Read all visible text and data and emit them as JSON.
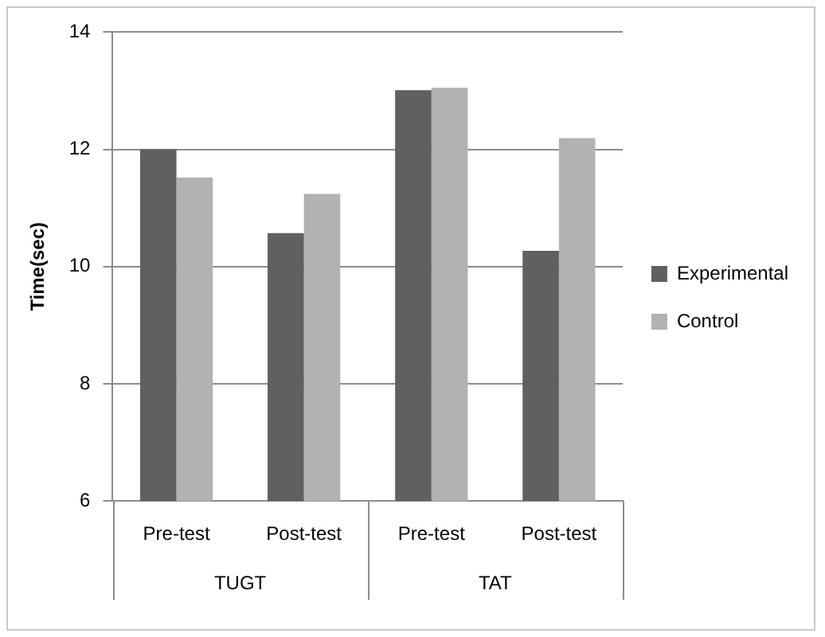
{
  "chart_data": {
    "type": "bar",
    "ylabel": "Time(sec)",
    "categories": [
      "Pre-test",
      "Post-test",
      "Pre-test",
      "Post-test"
    ],
    "annotations": [
      "TUGT",
      "TAT"
    ],
    "series": [
      {
        "name": "Experimental",
        "color": "#606060",
        "values": [
          12.0,
          10.57,
          13.01,
          10.27
        ]
      },
      {
        "name": "Control",
        "color": "#b2b2b2",
        "values": [
          11.52,
          11.24,
          13.05,
          12.19
        ]
      }
    ],
    "ylim": [
      6,
      14
    ],
    "yticks": [
      6,
      8,
      10,
      12,
      14
    ],
    "grid": "y",
    "legend": "right"
  }
}
